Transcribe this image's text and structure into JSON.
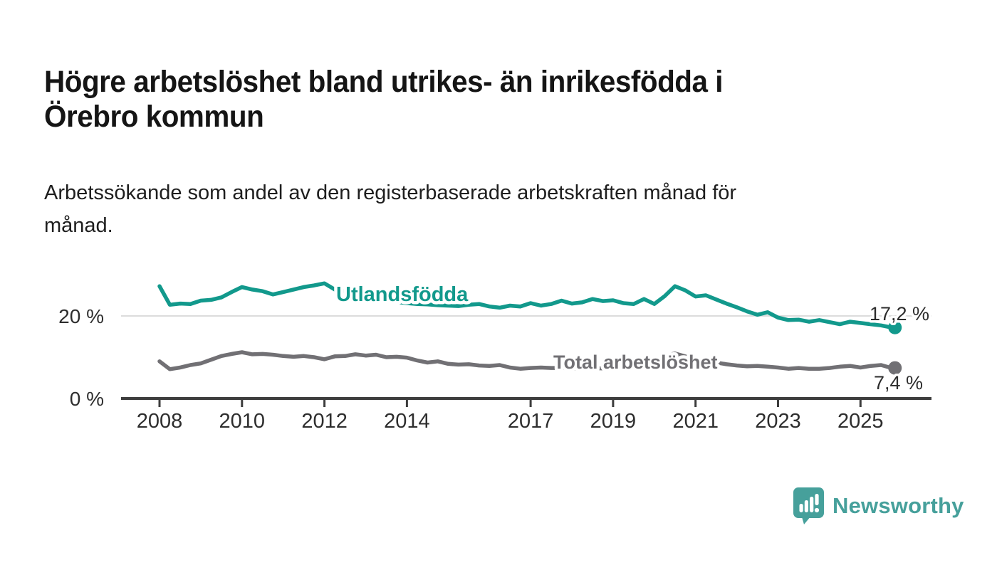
{
  "header": {
    "title": "Högre arbetslöshet bland utrikes- än inrikesfödda i Örebro kommun",
    "title_lines": [
      "Högre arbetslöshet bland utrikes- än inrikesfödda i",
      "Örebro kommun"
    ],
    "subtitle": "Arbetssökande som andel av den registerbaserade arbetskraften månad för månad.",
    "subtitle_lines": [
      "Arbetssökande som andel av den registerbaserade arbetskraften månad för",
      "månad."
    ]
  },
  "chart_data": {
    "type": "line",
    "title": "Högre arbetslöshet bland utrikes- än inrikesfödda i Örebro kommun",
    "xlabel": "",
    "ylabel": "",
    "xlim": [
      2007.1,
      2026.7
    ],
    "ylim": [
      0,
      32.8
    ],
    "grid": "single horizontal gridline at 20 %",
    "legend": "inline series labels on chart",
    "colors": {
      "series_foreign_born": "#12998c",
      "series_total": "#717074",
      "axis": "#3d3d3d",
      "gridline": "#dcdcdc",
      "tick_label": "#2e2e2e",
      "value_label": "#2c2c2c"
    },
    "x_axis": {
      "ticks": [
        {
          "year": 2008,
          "label": "2008"
        },
        {
          "year": 2010,
          "label": "2010"
        },
        {
          "year": 2012,
          "label": "2012"
        },
        {
          "year": 2014,
          "label": "2014"
        },
        {
          "year": 2017,
          "label": "2017"
        },
        {
          "year": 2019,
          "label": "2019"
        },
        {
          "year": 2021,
          "label": "2021"
        },
        {
          "year": 2023,
          "label": "2023"
        },
        {
          "year": 2025,
          "label": "2025"
        }
      ]
    },
    "y_axis": {
      "ticks": [
        {
          "value": 0,
          "label": "0 %"
        },
        {
          "value": 20,
          "label": "20 %"
        }
      ]
    },
    "x": [
      2008,
      2008.25,
      2008.5,
      2008.75,
      2009,
      2009.25,
      2009.5,
      2009.75,
      2010,
      2010.25,
      2010.5,
      2010.75,
      2011,
      2011.25,
      2011.5,
      2011.75,
      2012,
      2012.25,
      2012.5,
      2012.75,
      2013,
      2013.25,
      2013.5,
      2013.75,
      2014,
      2014.25,
      2014.5,
      2014.75,
      2015,
      2015.25,
      2015.5,
      2015.75,
      2016,
      2016.25,
      2016.5,
      2016.75,
      2017,
      2017.25,
      2017.5,
      2017.75,
      2018,
      2018.25,
      2018.5,
      2018.75,
      2019,
      2019.25,
      2019.5,
      2019.75,
      2020,
      2020.25,
      2020.5,
      2020.75,
      2021,
      2021.25,
      2021.5,
      2021.75,
      2022,
      2022.25,
      2022.5,
      2022.75,
      2023,
      2023.25,
      2023.5,
      2023.75,
      2024,
      2024.25,
      2024.5,
      2024.75,
      2025,
      2025.25,
      2025.5,
      2025.75
    ],
    "series": [
      {
        "id": "utlandsfodda",
        "name": "Utlandsfödda",
        "color": "#12998c",
        "end_label": "17,2 %",
        "end_value": 17.2,
        "values": [
          27.2,
          22.7,
          23.0,
          22.9,
          23.7,
          23.9,
          24.5,
          25.8,
          27.0,
          26.4,
          26.0,
          25.2,
          25.8,
          26.4,
          27.0,
          27.4,
          27.9,
          26.4,
          26.0,
          25.3,
          24.7,
          24.2,
          23.8,
          23.4,
          23.1,
          22.9,
          22.8,
          22.6,
          22.5,
          22.4,
          22.7,
          22.9,
          22.3,
          22.0,
          22.5,
          22.3,
          23.1,
          22.5,
          22.9,
          23.7,
          23.0,
          23.3,
          24.1,
          23.6,
          23.8,
          23.1,
          22.9,
          24.1,
          22.9,
          24.8,
          27.2,
          26.2,
          24.7,
          25.0,
          24.0,
          23.0,
          22.1,
          21.1,
          20.3,
          20.9,
          19.6,
          19.0,
          19.1,
          18.6,
          19.0,
          18.5,
          18.0,
          18.6,
          18.3,
          18.0,
          17.7,
          17.2
        ]
      },
      {
        "id": "total-arbetsloshet",
        "name": "Total arbetslöshet",
        "color": "#717074",
        "end_label": "7,4 %",
        "end_value": 7.4,
        "values": [
          9.0,
          7.1,
          7.5,
          8.1,
          8.5,
          9.4,
          10.3,
          10.8,
          11.2,
          10.7,
          10.8,
          10.6,
          10.3,
          10.1,
          10.3,
          10.0,
          9.5,
          10.2,
          10.3,
          10.7,
          10.4,
          10.6,
          10.0,
          10.1,
          9.9,
          9.2,
          8.7,
          9.0,
          8.4,
          8.2,
          8.3,
          8.0,
          7.9,
          8.1,
          7.5,
          7.2,
          7.4,
          7.5,
          7.4,
          7.4,
          7.3,
          7.2,
          7.4,
          7.3,
          7.2,
          7.3,
          7.5,
          7.7,
          8.0,
          10.4,
          10.9,
          10.2,
          9.6,
          9.2,
          8.7,
          8.3,
          8.0,
          7.8,
          7.9,
          7.7,
          7.5,
          7.2,
          7.4,
          7.2,
          7.2,
          7.4,
          7.7,
          7.9,
          7.5,
          7.9,
          8.1,
          7.4
        ]
      }
    ]
  },
  "footer": {
    "brand": "Newsworthy",
    "logo_icon": "bar-chart-speech-bubble-icon",
    "brand_color": "#46a09b"
  }
}
